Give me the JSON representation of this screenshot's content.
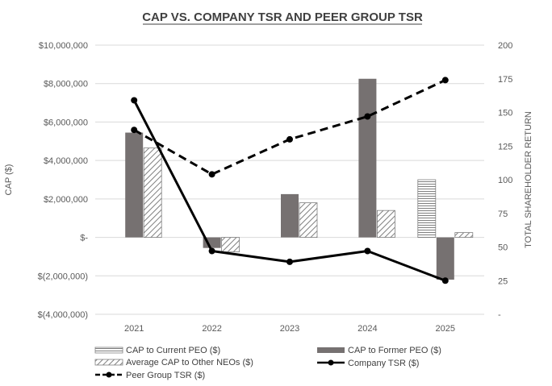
{
  "chart_data": {
    "type": "bar",
    "title": "CAP VS. COMPANY TSR AND PEER GROUP TSR",
    "categories": [
      "2021",
      "2022",
      "2023",
      "2024",
      "2025"
    ],
    "ylabel": "CAP ($)",
    "y2label": "TOTAL SHAREHOLDER RETURN",
    "ylim": [
      -4000000,
      10000000
    ],
    "y2lim": [
      0,
      200
    ],
    "y_ticks": [
      10000000,
      8000000,
      6000000,
      4000000,
      2000000,
      0,
      -2000000,
      -4000000
    ],
    "y_tick_labels": [
      "$10,000,000",
      "$8,000,000",
      "$6,000,000",
      "$4,000,000",
      "$2,000,000",
      "$-",
      "$(2,000,000)",
      "$(4,000,000)"
    ],
    "y2_ticks": [
      200,
      175,
      150,
      125,
      100,
      75,
      50,
      25,
      0
    ],
    "y2_tick_labels": [
      "200",
      "175",
      "150",
      "125",
      "100",
      "75",
      "50",
      "25",
      "-"
    ],
    "series": [
      {
        "name": "CAP to Current PEO ($)",
        "kind": "bar",
        "pattern": "hlines",
        "values": [
          null,
          null,
          null,
          null,
          3000000
        ]
      },
      {
        "name": "CAP to Former PEO ($)",
        "kind": "bar",
        "pattern": "solid",
        "values": [
          5450000,
          -550000,
          2250000,
          8250000,
          -2200000
        ]
      },
      {
        "name": "Average CAP to Other NEOs ($)",
        "kind": "bar",
        "pattern": "diag",
        "values": [
          4650000,
          -750000,
          1800000,
          1400000,
          250000
        ]
      },
      {
        "name": "Company TSR ($)",
        "kind": "line",
        "axis": "right",
        "style": "solid",
        "values": [
          159,
          47,
          39,
          47,
          25
        ]
      },
      {
        "name": "Peer Group TSR ($)",
        "kind": "line",
        "axis": "right",
        "style": "dashed",
        "values": [
          137,
          104,
          130,
          147,
          174
        ]
      }
    ],
    "colors": {
      "solid_bar": "#767171",
      "line": "#000000",
      "grid": "#d9d9d9",
      "pattern_stroke": "#7f7f7f"
    },
    "legend": [
      "CAP to Current PEO ($)",
      "CAP to Former PEO ($)",
      "Average CAP to Other NEOs ($)",
      "Company TSR ($)",
      "Peer Group TSR ($)"
    ]
  }
}
